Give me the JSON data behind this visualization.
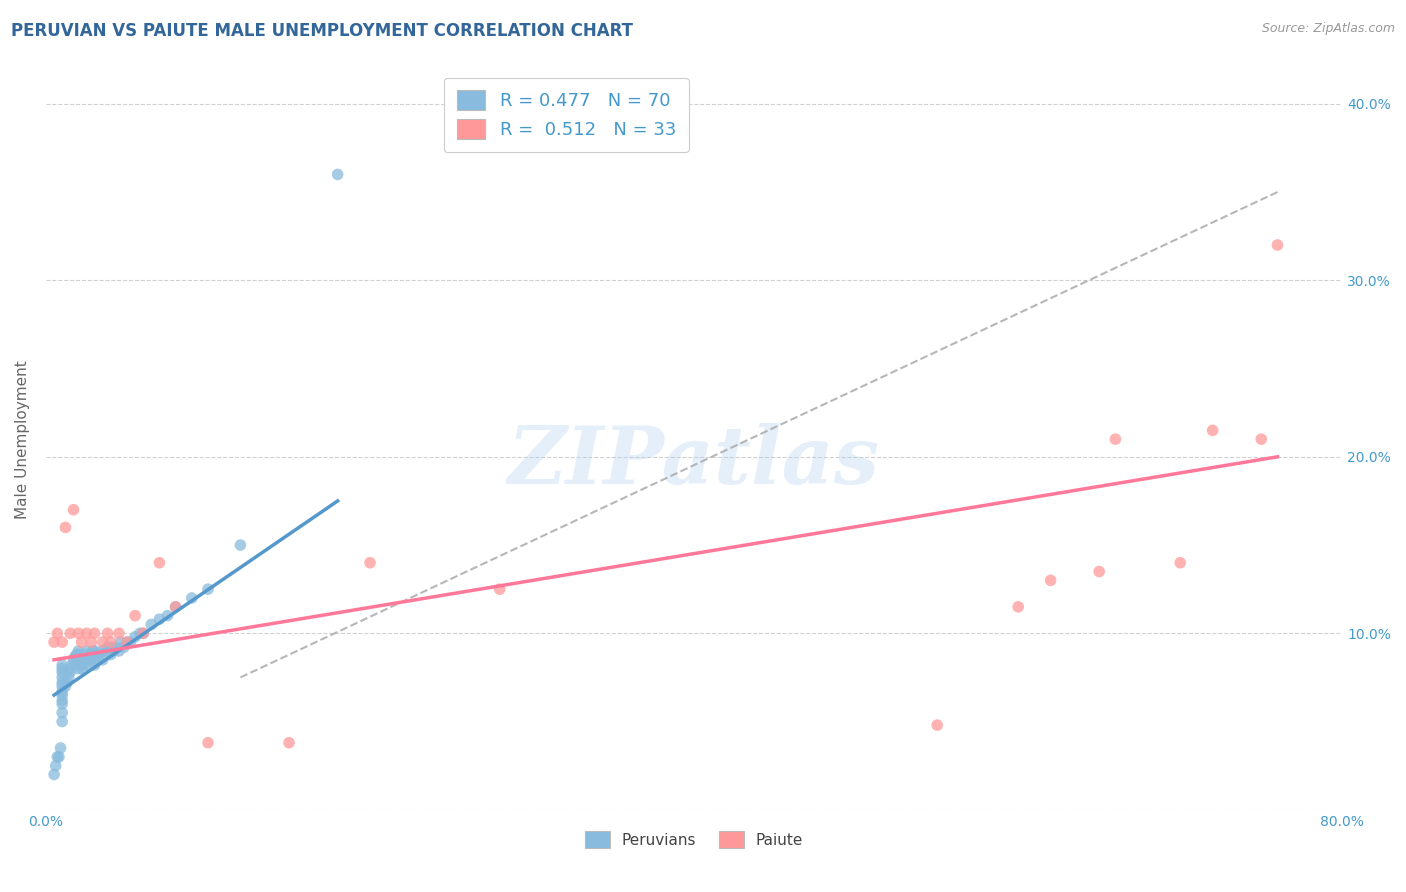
{
  "title": "PERUVIAN VS PAIUTE MALE UNEMPLOYMENT CORRELATION CHART",
  "source": "Source: ZipAtlas.com",
  "ylabel": "Male Unemployment",
  "xlim": [
    0.0,
    0.8
  ],
  "ylim": [
    0.0,
    0.42
  ],
  "peruvian_color": "#88BBDD",
  "paiute_color": "#FF9999",
  "peruvian_line_color": "#5599CC",
  "paiute_line_color": "#FF7799",
  "gray_line_color": "#AAAAAA",
  "watermark": "ZIPatlas",
  "background_color": "#FFFFFF",
  "grid_color": "#CCCCCC",
  "title_color": "#336699",
  "axis_label_color": "#666666",
  "tick_label_color": "#4499CC",
  "legend_text_color": "#4499CC",
  "peruvian_x": [
    0.005,
    0.006,
    0.007,
    0.008,
    0.009,
    0.01,
    0.01,
    0.01,
    0.01,
    0.01,
    0.01,
    0.01,
    0.01,
    0.01,
    0.01,
    0.01,
    0.01,
    0.012,
    0.013,
    0.014,
    0.015,
    0.015,
    0.016,
    0.017,
    0.018,
    0.019,
    0.02,
    0.02,
    0.02,
    0.02,
    0.02,
    0.022,
    0.023,
    0.024,
    0.025,
    0.025,
    0.026,
    0.027,
    0.028,
    0.029,
    0.03,
    0.03,
    0.03,
    0.03,
    0.032,
    0.033,
    0.035,
    0.035,
    0.037,
    0.038,
    0.04,
    0.04,
    0.042,
    0.043,
    0.045,
    0.046,
    0.048,
    0.05,
    0.052,
    0.055,
    0.058,
    0.06,
    0.065,
    0.07,
    0.075,
    0.08,
    0.09,
    0.1,
    0.12,
    0.18
  ],
  "peruvian_y": [
    0.02,
    0.025,
    0.03,
    0.03,
    0.035,
    0.05,
    0.055,
    0.06,
    0.062,
    0.065,
    0.067,
    0.07,
    0.072,
    0.075,
    0.078,
    0.08,
    0.082,
    0.07,
    0.072,
    0.075,
    0.078,
    0.08,
    0.082,
    0.085,
    0.087,
    0.088,
    0.08,
    0.082,
    0.085,
    0.088,
    0.09,
    0.08,
    0.082,
    0.085,
    0.088,
    0.09,
    0.082,
    0.085,
    0.088,
    0.09,
    0.082,
    0.085,
    0.088,
    0.09,
    0.085,
    0.088,
    0.085,
    0.09,
    0.09,
    0.092,
    0.088,
    0.092,
    0.09,
    0.092,
    0.09,
    0.095,
    0.092,
    0.095,
    0.095,
    0.098,
    0.1,
    0.1,
    0.105,
    0.108,
    0.11,
    0.115,
    0.12,
    0.125,
    0.15,
    0.36
  ],
  "paiute_x": [
    0.005,
    0.007,
    0.01,
    0.012,
    0.015,
    0.017,
    0.02,
    0.022,
    0.025,
    0.028,
    0.03,
    0.035,
    0.038,
    0.04,
    0.045,
    0.05,
    0.055,
    0.06,
    0.07,
    0.08,
    0.1,
    0.15,
    0.2,
    0.28,
    0.55,
    0.6,
    0.62,
    0.65,
    0.66,
    0.7,
    0.72,
    0.75,
    0.76
  ],
  "paiute_y": [
    0.095,
    0.1,
    0.095,
    0.16,
    0.1,
    0.17,
    0.1,
    0.095,
    0.1,
    0.095,
    0.1,
    0.095,
    0.1,
    0.095,
    0.1,
    0.095,
    0.11,
    0.1,
    0.14,
    0.115,
    0.038,
    0.038,
    0.14,
    0.125,
    0.048,
    0.115,
    0.13,
    0.135,
    0.21,
    0.14,
    0.215,
    0.21,
    0.32
  ],
  "peruvian_line_x": [
    0.005,
    0.18
  ],
  "peruvian_line_y": [
    0.065,
    0.175
  ],
  "paiute_line_x": [
    0.005,
    0.76
  ],
  "paiute_line_y": [
    0.085,
    0.2
  ],
  "gray_line_x": [
    0.12,
    0.76
  ],
  "gray_line_y": [
    0.075,
    0.35
  ]
}
